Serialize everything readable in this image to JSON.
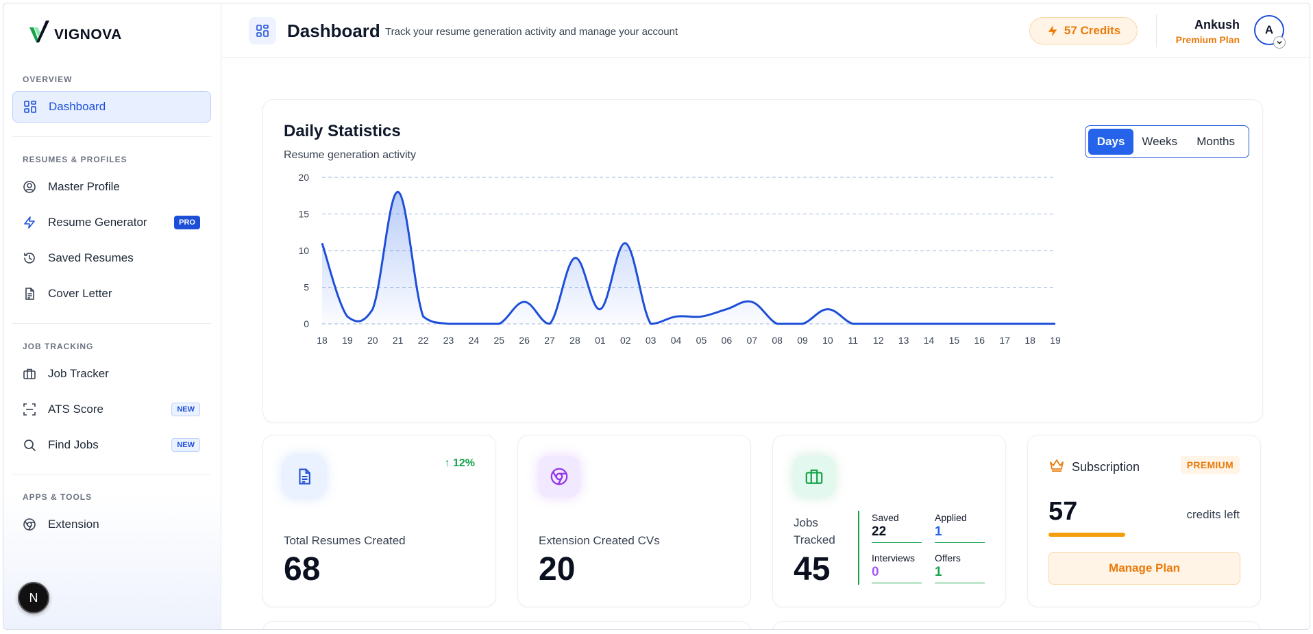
{
  "brand": {
    "name": "VIGNOVA"
  },
  "sidebar": {
    "sections": [
      {
        "title": "OVERVIEW",
        "items": [
          {
            "label": "Dashboard",
            "icon": "grid-icon",
            "active": true
          }
        ]
      },
      {
        "title": "RESUMES & PROFILES",
        "items": [
          {
            "label": "Master Profile",
            "icon": "user-circle-icon"
          },
          {
            "label": "Resume Generator",
            "icon": "lightning-icon",
            "badge": "PRO"
          },
          {
            "label": "Saved Resumes",
            "icon": "history-icon"
          },
          {
            "label": "Cover Letter",
            "icon": "document-icon"
          }
        ]
      },
      {
        "title": "JOB TRACKING",
        "items": [
          {
            "label": "Job Tracker",
            "icon": "briefcase-icon"
          },
          {
            "label": "ATS Score",
            "icon": "scan-icon",
            "badge": "NEW"
          },
          {
            "label": "Find Jobs",
            "icon": "search-icon",
            "badge": "NEW"
          }
        ]
      },
      {
        "title": "APPS & TOOLS",
        "items": [
          {
            "label": "Extension",
            "icon": "chrome-icon"
          }
        ]
      }
    ],
    "floating_button": "N"
  },
  "header": {
    "title": "Dashboard",
    "subtitle": "Track your resume generation activity and manage your account",
    "credits": "57 Credits",
    "user_name": "Ankush",
    "user_plan": "Premium Plan",
    "avatar_initial": "A"
  },
  "daily_stats": {
    "title": "Daily Statistics",
    "subtitle": "Resume generation activity",
    "tabs": [
      "Days",
      "Weeks",
      "Months"
    ],
    "active_tab": "Days"
  },
  "chart_data": {
    "type": "area",
    "title": "",
    "xlabel": "",
    "ylabel": "",
    "ylim": [
      0,
      20
    ],
    "yticks": [
      0,
      5,
      10,
      15,
      20
    ],
    "grid": true,
    "x": [
      "18",
      "19",
      "20",
      "21",
      "22",
      "23",
      "24",
      "25",
      "26",
      "27",
      "28",
      "01",
      "02",
      "03",
      "04",
      "05",
      "06",
      "07",
      "08",
      "09",
      "10",
      "11",
      "12",
      "13",
      "14",
      "15",
      "16",
      "17",
      "18",
      "19"
    ],
    "values": [
      11,
      1,
      2,
      18,
      1,
      0,
      0,
      0,
      3,
      0,
      9,
      2,
      11,
      0,
      1,
      1,
      2,
      3,
      0,
      0,
      2,
      0,
      0,
      0,
      0,
      0,
      0,
      0,
      0,
      0
    ],
    "color": "#1d4ed8"
  },
  "stats": {
    "total_resumes": {
      "label": "Total Resumes Created",
      "value": "68",
      "trend": "12%"
    },
    "extension_cvs": {
      "label": "Extension Created CVs",
      "value": "20"
    },
    "jobs": {
      "label_line1": "Jobs",
      "label_line2": "Tracked",
      "value": "45",
      "saved_label": "Saved",
      "saved": "22",
      "applied_label": "Applied",
      "applied": "1",
      "interviews_label": "Interviews",
      "interviews": "0",
      "offers_label": "Offers",
      "offers": "1"
    },
    "subscription": {
      "title": "Subscription",
      "badge": "PREMIUM",
      "credits": "57",
      "credits_label": "credits left",
      "progress": 0.4,
      "button": "Manage Plan"
    }
  }
}
